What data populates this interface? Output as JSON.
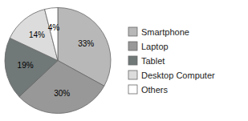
{
  "chart_data": {
    "type": "pie",
    "categories": [
      "Smartphone",
      "Laptop",
      "Tablet",
      "Desktop Computer",
      "Others"
    ],
    "values": [
      33,
      30,
      19,
      14,
      4
    ],
    "value_labels": [
      "33%",
      "30%",
      "19%",
      "14%",
      "4%"
    ],
    "colors": [
      "#b8b8b8",
      "#989898",
      "#707878",
      "#dcdcdc",
      "#ffffff"
    ],
    "data_labels": true,
    "legend": "right"
  }
}
